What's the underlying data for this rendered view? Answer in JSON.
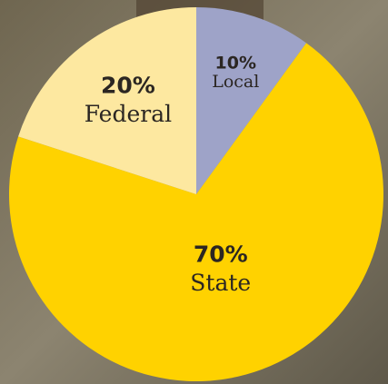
{
  "chart_data": {
    "type": "pie",
    "categories": [
      "Local",
      "State",
      "Federal"
    ],
    "values": [
      10,
      70,
      20
    ],
    "value_labels": [
      "10%",
      "70%",
      "20%"
    ],
    "colors": [
      "#9ea3c8",
      "#ffd200",
      "#fde8a0"
    ]
  }
}
